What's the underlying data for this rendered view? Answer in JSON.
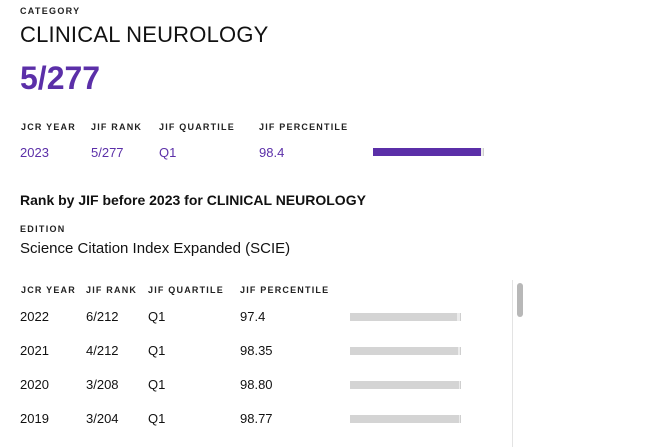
{
  "category": {
    "label": "CATEGORY",
    "name": "CLINICAL NEUROLOGY",
    "rank": "5/277"
  },
  "current": {
    "headers": {
      "year": "JCR YEAR",
      "rank": "JIF RANK",
      "quartile": "JIF QUARTILE",
      "percentile": "JIF PERCENTILE"
    },
    "year": "2023",
    "rank": "5/277",
    "quartile": "Q1",
    "percentile": "98.4",
    "percentile_value": 98.4
  },
  "history": {
    "title": "Rank by JIF before 2023 for CLINICAL NEUROLOGY",
    "edition_label": "EDITION",
    "edition_value": "Science Citation Index Expanded (SCIE)",
    "headers": {
      "year": "JCR YEAR",
      "rank": "JIF RANK",
      "quartile": "JIF QUARTILE",
      "percentile": "JIF PERCENTILE"
    },
    "rows": [
      {
        "year": "2022",
        "rank": "6/212",
        "quartile": "Q1",
        "percentile": "97.4",
        "percentile_value": 97.4
      },
      {
        "year": "2021",
        "rank": "4/212",
        "quartile": "Q1",
        "percentile": "98.35",
        "percentile_value": 98.35
      },
      {
        "year": "2020",
        "rank": "3/208",
        "quartile": "Q1",
        "percentile": "98.80",
        "percentile_value": 98.8
      },
      {
        "year": "2019",
        "rank": "3/204",
        "quartile": "Q1",
        "percentile": "98.77",
        "percentile_value": 98.77
      }
    ]
  },
  "colors": {
    "accent": "#5b2fa8",
    "bar_grey": "#d4d4d4"
  }
}
